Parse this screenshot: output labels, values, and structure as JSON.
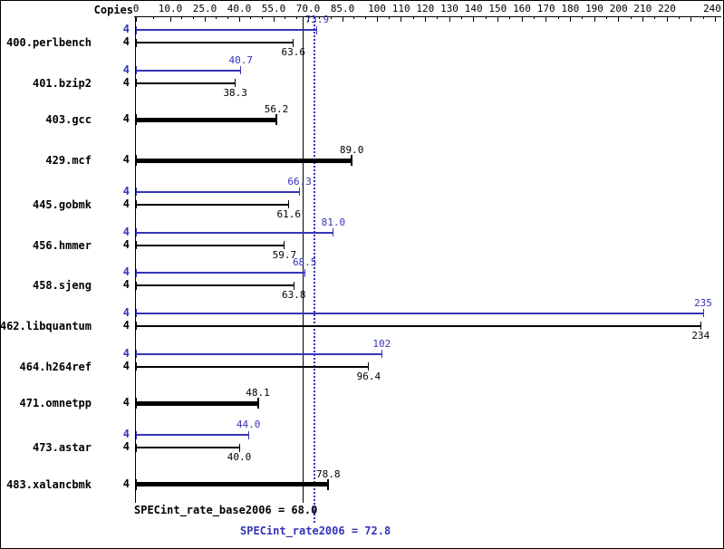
{
  "header": {
    "copies_label": "Copies"
  },
  "colors": {
    "base": "#000000",
    "peak": "#3434b8"
  },
  "chart_data": {
    "type": "bar",
    "orientation": "horizontal",
    "x_axis": {
      "scale": "piecewise-nonlinear",
      "range": [
        0,
        240
      ],
      "minor_tick_step": 5,
      "major_ticks": [
        {
          "value": 0,
          "label": "0"
        },
        {
          "value": 10,
          "label": "10.0"
        },
        {
          "value": 25,
          "label": "25.0"
        },
        {
          "value": 40,
          "label": "40.0"
        },
        {
          "value": 55,
          "label": "55.0"
        },
        {
          "value": 70,
          "label": "70.0"
        },
        {
          "value": 85,
          "label": "85.0"
        },
        {
          "value": 100,
          "label": "100"
        },
        {
          "value": 110,
          "label": "110"
        },
        {
          "value": 120,
          "label": "120"
        },
        {
          "value": 130,
          "label": "130"
        },
        {
          "value": 140,
          "label": "140"
        },
        {
          "value": 150,
          "label": "150"
        },
        {
          "value": 160,
          "label": "160"
        },
        {
          "value": 170,
          "label": "170"
        },
        {
          "value": 180,
          "label": "180"
        },
        {
          "value": 190,
          "label": "190"
        },
        {
          "value": 200,
          "label": "200"
        },
        {
          "value": 210,
          "label": "210"
        },
        {
          "value": 220,
          "label": "220"
        },
        {
          "value": 230,
          "label": ""
        },
        {
          "value": 240,
          "label": "240"
        }
      ]
    },
    "benchmarks": [
      {
        "name": "400.perlbench",
        "peak_copies": "4",
        "base_copies": "4",
        "peak": 73.9,
        "peak_label": "73.9",
        "base": 63.6,
        "base_label": "63.6"
      },
      {
        "name": "401.bzip2",
        "peak_copies": "4",
        "base_copies": "4",
        "peak": 40.7,
        "peak_label": "40.7",
        "base": 38.3,
        "base_label": "38.3"
      },
      {
        "name": "403.gcc",
        "base_copies": "4",
        "base": 56.2,
        "base_label": "56.2"
      },
      {
        "name": "429.mcf",
        "base_copies": "4",
        "base": 89.0,
        "base_label": "89.0"
      },
      {
        "name": "445.gobmk",
        "peak_copies": "4",
        "base_copies": "4",
        "peak": 66.3,
        "peak_label": "66.3",
        "base": 61.6,
        "base_label": "61.6"
      },
      {
        "name": "456.hmmer",
        "peak_copies": "4",
        "base_copies": "4",
        "peak": 81.0,
        "peak_label": "81.0",
        "base": 59.7,
        "base_label": "59.7"
      },
      {
        "name": "458.sjeng",
        "peak_copies": "4",
        "base_copies": "4",
        "peak": 68.5,
        "peak_label": "68.5",
        "base": 63.8,
        "base_label": "63.8"
      },
      {
        "name": "462.libquantum",
        "peak_copies": "4",
        "base_copies": "4",
        "peak": 235,
        "peak_label": "235",
        "base": 234,
        "base_label": "234"
      },
      {
        "name": "464.h264ref",
        "peak_copies": "4",
        "base_copies": "4",
        "peak": 102,
        "peak_label": "102",
        "base": 96.4,
        "base_label": "96.4"
      },
      {
        "name": "471.omnetpp",
        "base_copies": "4",
        "base": 48.1,
        "base_label": "48.1"
      },
      {
        "name": "473.astar",
        "peak_copies": "4",
        "base_copies": "4",
        "peak": 44.0,
        "peak_label": "44.0",
        "base": 40.0,
        "base_label": "40.0"
      },
      {
        "name": "483.xalancbmk",
        "base_copies": "4",
        "base": 78.8,
        "base_label": "78.8"
      }
    ],
    "reference_lines": [
      {
        "metric": "base",
        "value": 68.0,
        "style": "solid",
        "color": "#000000"
      },
      {
        "metric": "peak",
        "value": 72.8,
        "style": "dotted",
        "color": "#3434b8"
      }
    ]
  },
  "footer": {
    "base_mean_label": "SPECint_rate_base2006 = 68.0",
    "peak_mean_label": "SPECint_rate2006 = 72.8"
  }
}
